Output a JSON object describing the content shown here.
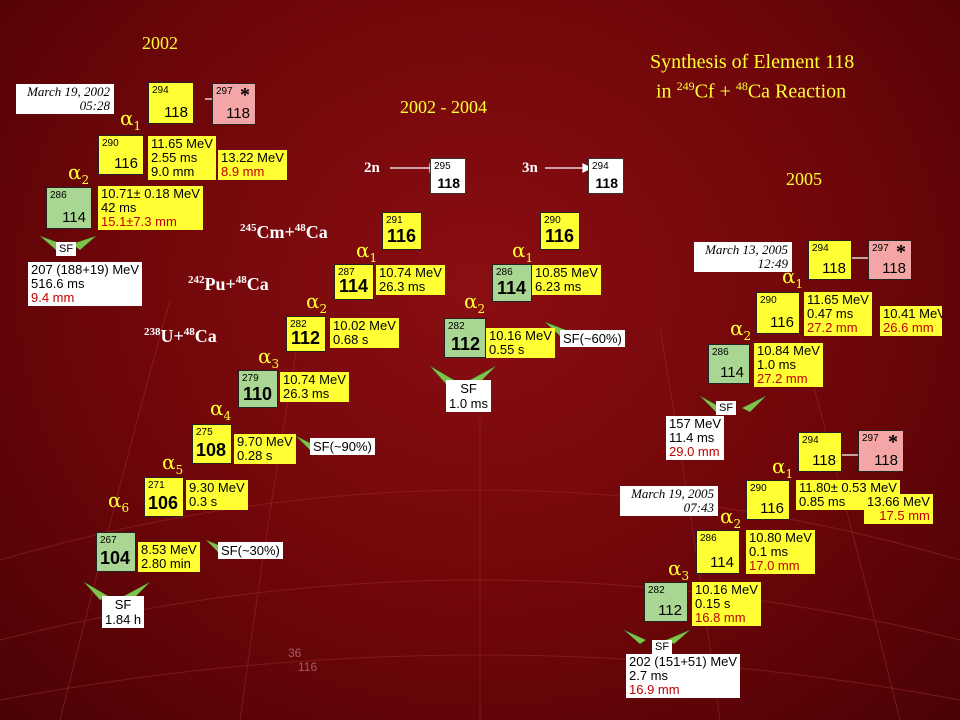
{
  "title": {
    "line1": "Synthesis of Element 118",
    "line2_pre": "in ",
    "line2_sup1": "249",
    "line2_mid": "Cf + ",
    "line2_sup2": "48",
    "line2_post": "Ca Reaction"
  },
  "years": {
    "y2002": "2002",
    "y2002_2004": "2002 - 2004",
    "y2005": "2005"
  },
  "chain2002": {
    "date": [
      "March 19, 2002",
      "05:28"
    ],
    "parent": {
      "mass": "294",
      "z": "118"
    },
    "compound": {
      "mass": "297",
      "z": "118",
      "mark": "*"
    },
    "d1": {
      "mass": "290",
      "z": "116"
    },
    "d2": {
      "mass": "286",
      "z": "114"
    },
    "alpha1": "α1",
    "alpha2": "α2",
    "info1": [
      "11.65 MeV",
      "2.55 ms",
      "9.0 mm"
    ],
    "info1b": [
      "13.22 MeV",
      "8.9 mm"
    ],
    "info2": [
      "10.71± 0.18 MeV",
      "42 ms",
      "15.1±7.3 mm"
    ],
    "sf": "SF",
    "sfinfo": [
      "207 (188+19) MeV",
      "516.6 ms",
      "9.4 mm"
    ]
  },
  "reactions": {
    "cm": [
      "245",
      "Cm+",
      "48",
      "Ca"
    ],
    "pu": [
      "242",
      "Pu+",
      "48",
      "Ca"
    ],
    "u": [
      "238",
      "U+",
      "48",
      "Ca"
    ]
  },
  "n2": {
    "label": "2n",
    "mass": "295",
    "z": "118"
  },
  "n3": {
    "label": "3n",
    "mass": "294",
    "z": "118"
  },
  "chainA": {
    "boxes": [
      {
        "mass": "291",
        "z": "116"
      },
      {
        "mass": "287",
        "z": "114"
      },
      {
        "mass": "282",
        "z": "112"
      },
      {
        "mass": "279",
        "z": "110"
      },
      {
        "mass": "275",
        "z": "108"
      },
      {
        "mass": "271",
        "z": "106"
      },
      {
        "mass": "267",
        "z": "104"
      }
    ],
    "alphas": [
      "α1",
      "α2",
      "α3",
      "α4",
      "α5",
      "α6"
    ],
    "info": [
      [
        "10.74 MeV",
        "26.3 ms"
      ],
      [
        "10.02 MeV",
        "0.68 s"
      ],
      [
        "10.74 MeV",
        "26.3 ms"
      ],
      [
        "9.70 MeV",
        "0.28 s"
      ],
      [
        "9.30 MeV",
        "0.3 s"
      ],
      [
        "8.53 MeV",
        "2.80 min"
      ]
    ],
    "sf90": "SF(~90%)",
    "sf30": "SF(~30%)",
    "sf": "SF",
    "sfTime": "1.84 h"
  },
  "chainB": {
    "boxes": [
      {
        "mass": "290",
        "z": "116"
      },
      {
        "mass": "286",
        "z": "114"
      },
      {
        "mass": "282",
        "z": "112"
      }
    ],
    "alphas": [
      "α1",
      "α2"
    ],
    "info": [
      [
        "10.85 MeV",
        "6.23 ms"
      ],
      [
        "10.16 MeV",
        "0.55 s"
      ]
    ],
    "sf60": "SF(~60%)",
    "sf": "SF",
    "sfTime": "1.0 ms"
  },
  "chain2005a": {
    "date": [
      "March 13, 2005",
      "12:49"
    ],
    "parent": {
      "mass": "294",
      "z": "118"
    },
    "compound": {
      "mass": "297",
      "z": "118",
      "mark": "*"
    },
    "d1": {
      "mass": "290",
      "z": "116"
    },
    "d2": {
      "mass": "286",
      "z": "114"
    },
    "alpha1": "α1",
    "alpha2": "α2",
    "info1": [
      "11.65 MeV",
      "0.47 ms",
      "27.2 mm"
    ],
    "info1b": [
      "10.41 MeV",
      "26.6 mm"
    ],
    "info2": [
      "10.84 MeV",
      "1.0  ms",
      "27.2 mm"
    ],
    "sf": "SF",
    "sfinfo": [
      "157 MeV",
      "11.4 ms",
      "29.0 mm"
    ]
  },
  "chain2005b": {
    "date": [
      "March 19, 2005",
      "07:43"
    ],
    "parent": {
      "mass": "294",
      "z": "118"
    },
    "compound": {
      "mass": "297",
      "z": "118",
      "mark": "*"
    },
    "d1": {
      "mass": "290",
      "z": "116"
    },
    "d2": {
      "mass": "286",
      "z": "114"
    },
    "d3": {
      "mass": "282",
      "z": "112"
    },
    "alpha1": "α1",
    "alpha2": "α2",
    "alpha3": "α3",
    "info1": [
      "11.80± 0.53 MeV",
      "0.85 ms"
    ],
    "info1b": [
      "13.66 MeV",
      "17.5 mm"
    ],
    "info2": [
      "10.80 MeV",
      "0.1 ms",
      "17.0 mm"
    ],
    "info3": [
      "10.16 MeV",
      "0.15 s",
      "16.8 mm"
    ],
    "sf": "SF",
    "sfinfo": [
      "202 (151+51) MeV",
      "2.7 ms",
      "16.9 mm"
    ]
  },
  "faint": [
    "36",
    "116"
  ],
  "colors": {
    "background": "#7a080c",
    "alpha_text": "#ffff33",
    "daughter_box": "#ffff33",
    "sf_box": "#a9d692",
    "compound_box": "#f4a6a6"
  }
}
